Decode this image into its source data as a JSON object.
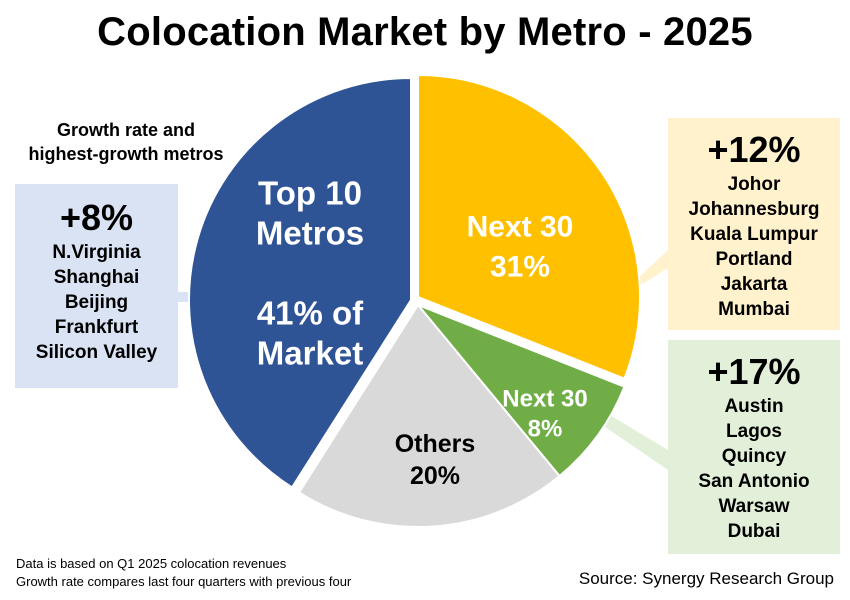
{
  "title": "Colocation Market by Metro - 2025",
  "growth_caption_line1": "Growth rate and",
  "growth_caption_line2": "highest-growth metros",
  "chart_data": {
    "type": "pie",
    "title": "Colocation Market by Metro - 2025",
    "slices": [
      {
        "name": "Top 10 Metros",
        "value": 41,
        "label_lines": [
          "Top 10",
          "Metros",
          "",
          "41% of",
          "Market"
        ],
        "color": "#2f5496"
      },
      {
        "name": "Next 30",
        "value": 31,
        "label_lines": [
          "Next 30",
          "31%"
        ],
        "color": "#ffc000"
      },
      {
        "name": "Next 30",
        "value": 8,
        "label_lines": [
          "Next 30",
          "8%"
        ],
        "color": "#70ad47"
      },
      {
        "name": "Others",
        "value": 20,
        "label_lines": [
          "Others",
          "20%"
        ],
        "color": "#d9d9d9"
      }
    ]
  },
  "groups": {
    "top10": {
      "rate": "+8%",
      "metros": [
        "N.Virginia",
        "Shanghai",
        "Beijing",
        "Frankfurt",
        "Silicon Valley"
      ],
      "color": "#dae3f3"
    },
    "next30a": {
      "rate": "+12%",
      "metros": [
        "Johor",
        "Johannesburg",
        "Kuala Lumpur",
        "Portland",
        "Jakarta",
        "Mumbai"
      ],
      "color": "#fff2cc"
    },
    "next30b": {
      "rate": "+17%",
      "metros": [
        "Austin",
        "Lagos",
        "Quincy",
        "San Antonio",
        "Warsaw",
        "Dubai"
      ],
      "color": "#e2f0d9"
    }
  },
  "footnotes": [
    "Data is based on Q1 2025 colocation revenues",
    "Growth rate compares last four quarters with previous four"
  ],
  "source": "Source: Synergy Research Group"
}
